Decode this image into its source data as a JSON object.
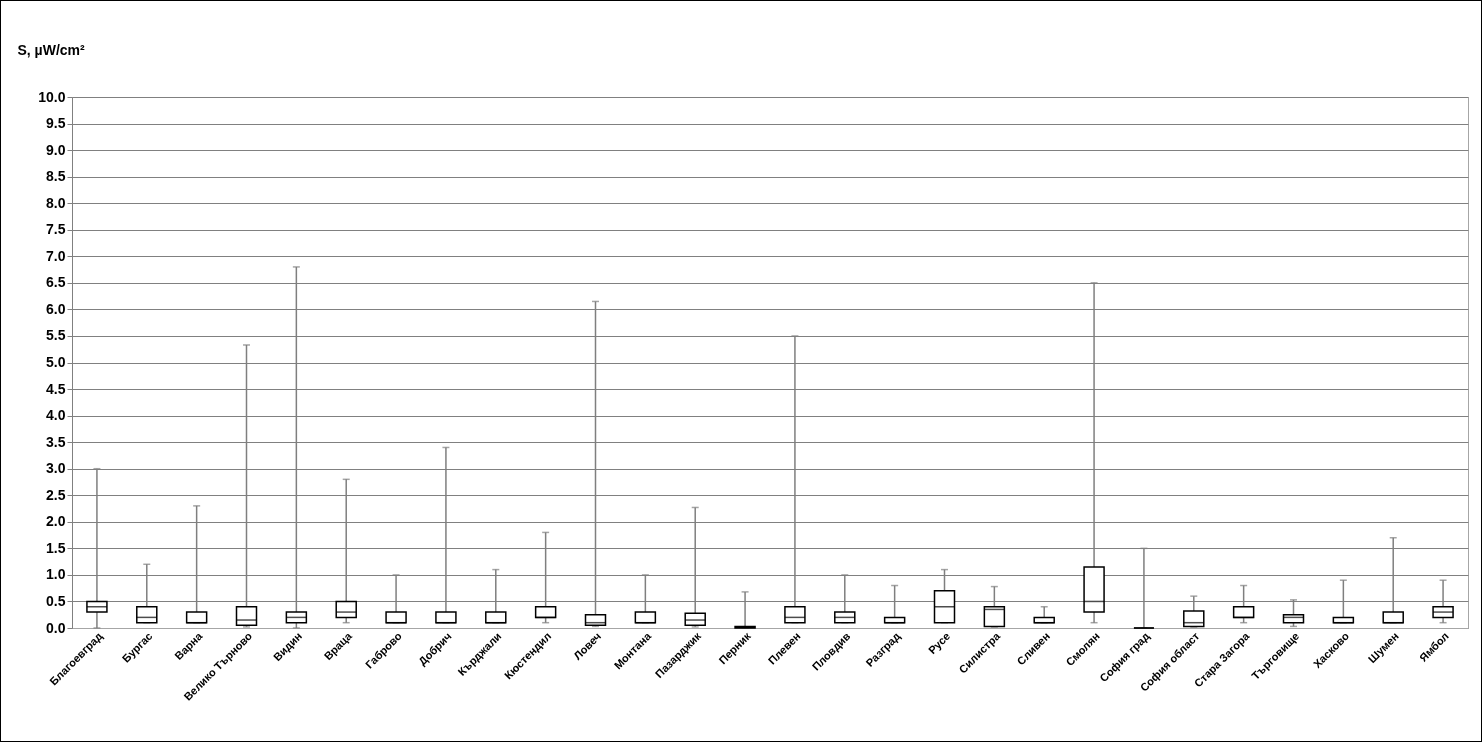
{
  "chart_data": {
    "type": "box",
    "ylabel": "S, µW/cm²",
    "categories": [
      "Благоевград",
      "Бургас",
      "Варна",
      "Велико Търново",
      "Видин",
      "Враца",
      "Габрово",
      "Добрич",
      "Кърджали",
      "Кюстендил",
      "Ловеч",
      "Монтана",
      "Пазарджик",
      "Перник",
      "Плевен",
      "Пловдив",
      "Разград",
      "Русе",
      "Силистра",
      "Сливен",
      "Смолян",
      "София град",
      "София област",
      "Стара Загора",
      "Търговище",
      "Хасково",
      "Шумен",
      "Ямбол"
    ],
    "boxes": [
      {
        "low": 0.0,
        "q1": 0.3,
        "median": 0.4,
        "q3": 0.5,
        "high": 3.0
      },
      {
        "low": 0.1,
        "q1": 0.1,
        "median": 0.2,
        "q3": 0.4,
        "high": 1.2
      },
      {
        "low": 0.1,
        "q1": 0.1,
        "median": 0.1,
        "q3": 0.3,
        "high": 2.3
      },
      {
        "low": 0.02,
        "q1": 0.05,
        "median": 0.15,
        "q3": 0.4,
        "high": 5.33
      },
      {
        "low": 0.0,
        "q1": 0.1,
        "median": 0.2,
        "q3": 0.3,
        "high": 6.8
      },
      {
        "low": 0.1,
        "q1": 0.2,
        "median": 0.3,
        "q3": 0.5,
        "high": 2.8
      },
      {
        "low": 0.1,
        "q1": 0.1,
        "median": 0.1,
        "q3": 0.3,
        "high": 1.0
      },
      {
        "low": 0.1,
        "q1": 0.1,
        "median": 0.1,
        "q3": 0.3,
        "high": 3.4
      },
      {
        "low": 0.1,
        "q1": 0.1,
        "median": 0.1,
        "q3": 0.3,
        "high": 1.1
      },
      {
        "low": 0.1,
        "q1": 0.2,
        "median": 0.2,
        "q3": 0.4,
        "high": 1.8
      },
      {
        "low": 0.03,
        "q1": 0.05,
        "median": 0.1,
        "q3": 0.25,
        "high": 6.15
      },
      {
        "low": 0.1,
        "q1": 0.1,
        "median": 0.1,
        "q3": 0.3,
        "high": 1.0
      },
      {
        "low": 0.02,
        "q1": 0.05,
        "median": 0.15,
        "q3": 0.28,
        "high": 2.27
      },
      {
        "low": 0.0,
        "q1": 0.0,
        "median": 0.02,
        "q3": 0.03,
        "high": 0.68
      },
      {
        "low": 0.1,
        "q1": 0.1,
        "median": 0.2,
        "q3": 0.4,
        "high": 5.5
      },
      {
        "low": 0.1,
        "q1": 0.1,
        "median": 0.2,
        "q3": 0.3,
        "high": 1.0
      },
      {
        "low": 0.1,
        "q1": 0.1,
        "median": 0.1,
        "q3": 0.2,
        "high": 0.8
      },
      {
        "low": 0.1,
        "q1": 0.1,
        "median": 0.4,
        "q3": 0.7,
        "high": 1.1
      },
      {
        "low": 0.02,
        "q1": 0.03,
        "median": 0.35,
        "q3": 0.4,
        "high": 0.78
      },
      {
        "low": 0.1,
        "q1": 0.1,
        "median": 0.1,
        "q3": 0.2,
        "high": 0.4
      },
      {
        "low": 0.1,
        "q1": 0.3,
        "median": 0.5,
        "q3": 1.15,
        "high": 6.5
      },
      {
        "low": 0.0,
        "q1": 0.0,
        "median": 0.0,
        "q3": 0.0,
        "high": 1.5
      },
      {
        "low": 0.02,
        "q1": 0.03,
        "median": 0.1,
        "q3": 0.32,
        "high": 0.6
      },
      {
        "low": 0.1,
        "q1": 0.2,
        "median": 0.2,
        "q3": 0.4,
        "high": 0.8
      },
      {
        "low": 0.03,
        "q1": 0.1,
        "median": 0.2,
        "q3": 0.25,
        "high": 0.53
      },
      {
        "low": 0.1,
        "q1": 0.1,
        "median": 0.1,
        "q3": 0.2,
        "high": 0.9
      },
      {
        "low": 0.1,
        "q1": 0.1,
        "median": 0.1,
        "q3": 0.3,
        "high": 1.7
      },
      {
        "low": 0.1,
        "q1": 0.2,
        "median": 0.3,
        "q3": 0.4,
        "high": 0.9
      }
    ],
    "ylim": [
      0,
      10
    ],
    "yticks": [
      {
        "value": 0,
        "label": "0.0"
      },
      {
        "value": 0.5,
        "label": "0.5"
      },
      {
        "value": 1,
        "label": "1.0"
      },
      {
        "value": 1.5,
        "label": "1.5"
      },
      {
        "value": 2,
        "label": "2.0"
      },
      {
        "value": 2.5,
        "label": "2.5"
      },
      {
        "value": 3,
        "label": "3.0"
      },
      {
        "value": 3.5,
        "label": "3.5"
      },
      {
        "value": 4,
        "label": "4.0"
      },
      {
        "value": 4.5,
        "label": "4.5"
      },
      {
        "value": 5,
        "label": "5.0"
      },
      {
        "value": 5.5,
        "label": "5.5"
      },
      {
        "value": 6,
        "label": "6.0"
      },
      {
        "value": 6.5,
        "label": "6.5"
      },
      {
        "value": 7,
        "label": "7.0"
      },
      {
        "value": 7.5,
        "label": "7.5"
      },
      {
        "value": 8,
        "label": "8.0"
      },
      {
        "value": 8.5,
        "label": "8.5"
      },
      {
        "value": 9,
        "label": "9.0"
      },
      {
        "value": 9.5,
        "label": "9.5"
      },
      {
        "value": 10,
        "label": "10.0"
      }
    ],
    "grid": "y"
  }
}
